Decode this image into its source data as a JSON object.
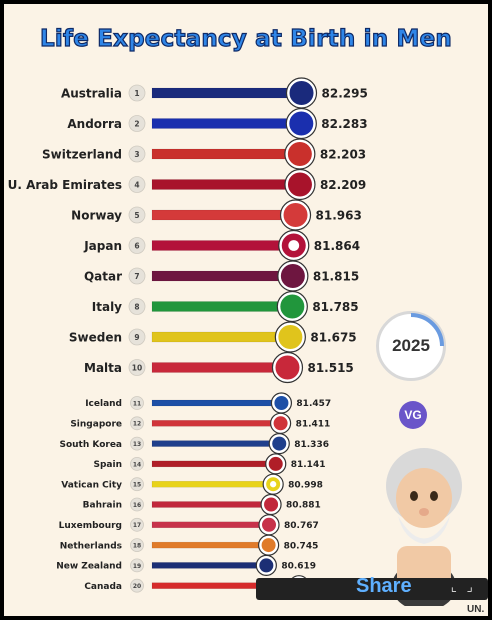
{
  "header": {
    "title": "Life Expectancy at Birth in Men"
  },
  "year_badge": {
    "label": "2025",
    "progress": 0.25
  },
  "logo": {
    "label": "VG",
    "color": "#6a55c9"
  },
  "share": {
    "label": "Share",
    "corner": "⌞ ⌟"
  },
  "source": {
    "label": "UN."
  },
  "chart_data": {
    "type": "bar",
    "orientation": "horizontal",
    "title": "Life Expectancy at Birth in Men",
    "categories": [
      "Australia",
      "Andorra",
      "Switzerland",
      "U. Arab Emirates",
      "Norway",
      "Japan",
      "Qatar",
      "Italy",
      "Sweden",
      "Malta",
      "Iceland",
      "Singapore",
      "South Korea",
      "Spain",
      "Vatican City",
      "Bahrain",
      "Luxembourg",
      "Netherlands",
      "New Zealand",
      "Canada"
    ],
    "ranks": [
      "1",
      "2",
      "3",
      "4",
      "5",
      "6",
      "7",
      "8",
      "9",
      "10",
      "11",
      "12",
      "13",
      "14",
      "15",
      "16",
      "17",
      "18",
      "19",
      "20"
    ],
    "values": [
      82.295,
      82.283,
      82.203,
      82.209,
      81.963,
      81.864,
      81.815,
      81.785,
      81.675,
      81.515,
      81.457,
      81.411,
      81.336,
      81.141,
      80.998,
      80.881,
      80.767,
      80.745,
      80.619,
      null
    ],
    "value_labels": [
      "82.295",
      "82.283",
      "82.203",
      "82.209",
      "81.963",
      "81.864",
      "81.815",
      "81.785",
      "81.675",
      "81.515",
      "81.457",
      "81.411",
      "81.336",
      "81.141",
      "80.998",
      "80.881",
      "80.767",
      "80.745",
      "80.619",
      ""
    ],
    "colors": [
      "#1a2a7c",
      "#1a2fae",
      "#c9302c",
      "#a8132b",
      "#d43a3a",
      "#b3123a",
      "#6e1640",
      "#21963c",
      "#e0c41c",
      "#c8283a",
      "#1d4fa6",
      "#d0343a",
      "#1f3f8c",
      "#b01e28",
      "#e8d31a",
      "#c1273b",
      "#c7324a",
      "#e07b2a",
      "#1c2f75",
      "#d62b2b"
    ],
    "flag_icons": [
      "australia-flag",
      "andorra-flag",
      "switzerland-flag",
      "uae-flag",
      "norway-flag",
      "japan-flag",
      "qatar-flag",
      "italy-flag",
      "sweden-flag",
      "malta-flag",
      "iceland-flag",
      "singapore-flag",
      "south-korea-flag",
      "spain-flag",
      "vatican-flag",
      "bahrain-flag",
      "luxembourg-flag",
      "netherlands-flag",
      "new-zealand-flag",
      "canada-flag"
    ],
    "legend": "none",
    "grid": false
  }
}
